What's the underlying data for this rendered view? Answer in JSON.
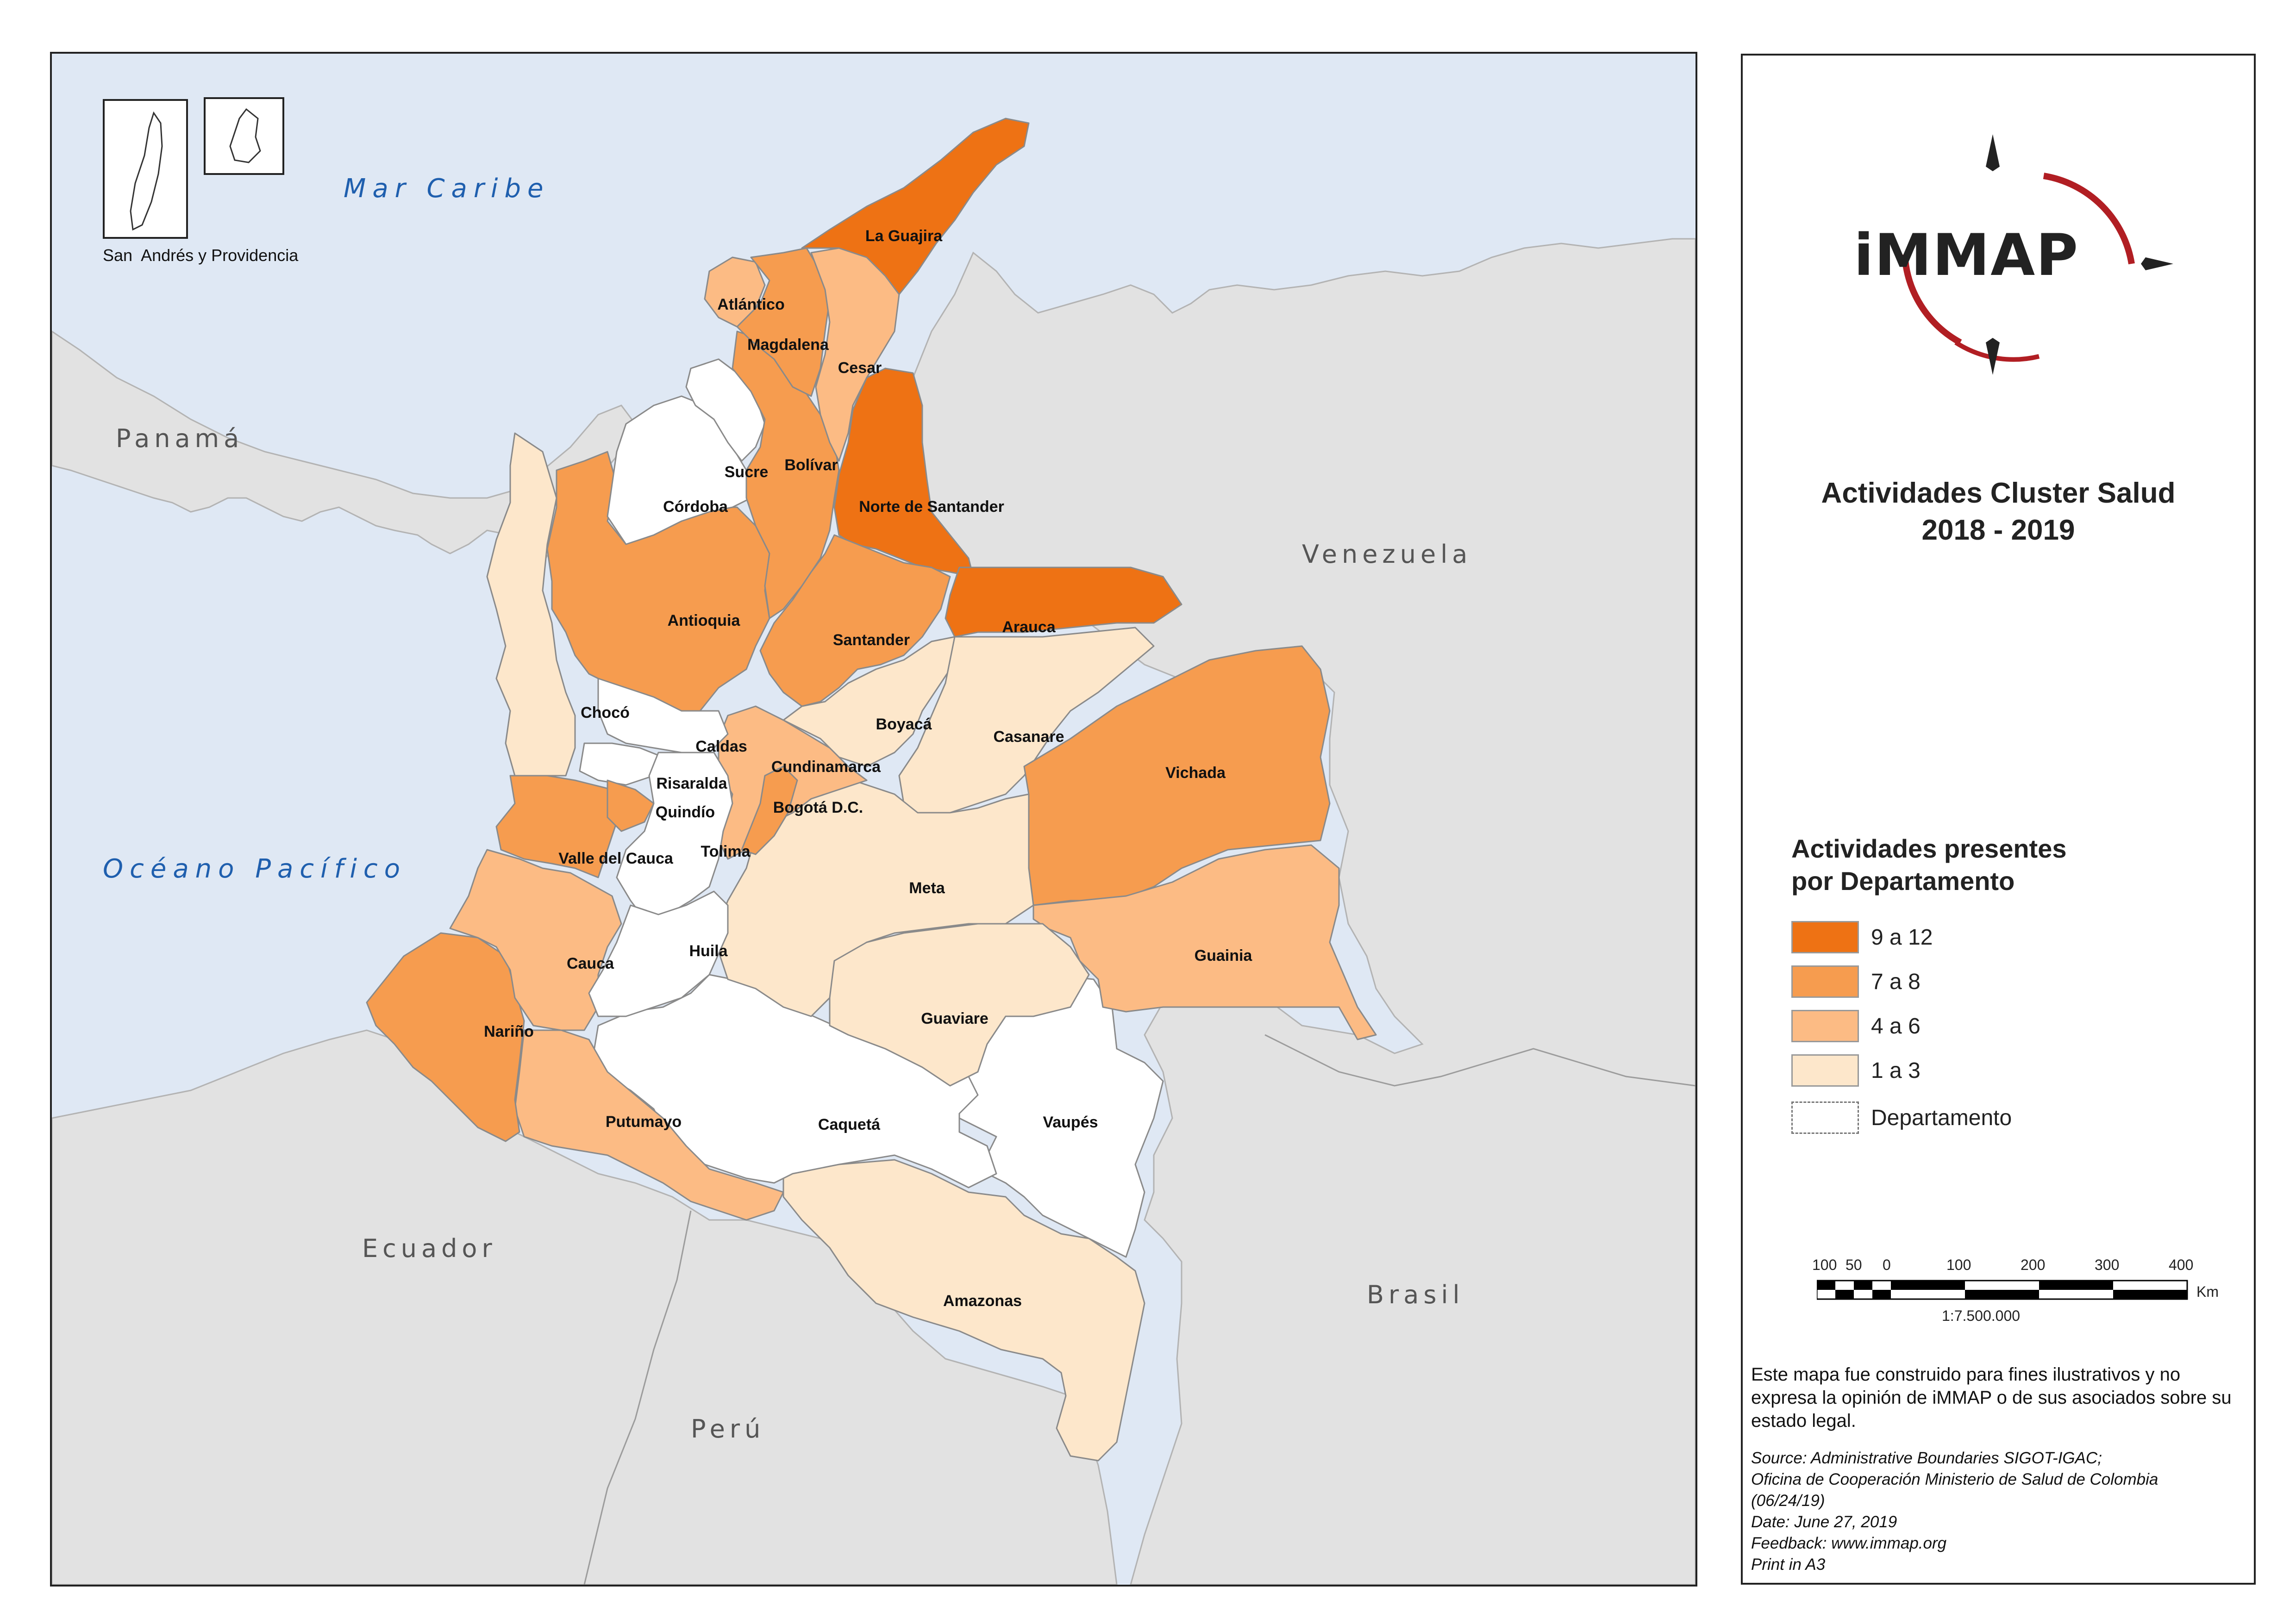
{
  "map": {
    "sea_labels": {
      "caribbean": "Mar Caribe",
      "pacific": "Océano Pacífico"
    },
    "country_labels": {
      "panama": "Panamá",
      "venezuela": "Venezuela",
      "ecuador": "Ecuador",
      "peru": "Perú",
      "brasil": "Brasil"
    },
    "inset_label": "San  Andrés y Providencia",
    "departments": [
      {
        "name": "La Guajira",
        "class": "9 a 12"
      },
      {
        "name": "Atlántico",
        "class": "4 a 6"
      },
      {
        "name": "Magdalena",
        "class": "7 a 8"
      },
      {
        "name": "Cesar",
        "class": "4 a 6"
      },
      {
        "name": "Sucre",
        "class": "Departamento"
      },
      {
        "name": "Bolívar",
        "class": "7 a 8"
      },
      {
        "name": "Córdoba",
        "class": "Departamento"
      },
      {
        "name": "Norte de Santander",
        "class": "9 a 12"
      },
      {
        "name": "Antioquia",
        "class": "7 a 8"
      },
      {
        "name": "Santander",
        "class": "7 a 8"
      },
      {
        "name": "Arauca",
        "class": "9 a 12"
      },
      {
        "name": "Chocó",
        "class": "1 a 3"
      },
      {
        "name": "Boyacá",
        "class": "1 a 3"
      },
      {
        "name": "Casanare",
        "class": "1 a 3"
      },
      {
        "name": "Caldas",
        "class": "Departamento"
      },
      {
        "name": "Cundinamarca",
        "class": "4 a 6"
      },
      {
        "name": "Vichada",
        "class": "7 a 8"
      },
      {
        "name": "Risaralda",
        "class": "Departamento"
      },
      {
        "name": "Quindío",
        "class": "7 a 8"
      },
      {
        "name": "Bogotá D.C.",
        "class": "7 a 8"
      },
      {
        "name": "Valle del Cauca",
        "class": "7 a 8"
      },
      {
        "name": "Tolima",
        "class": "Departamento"
      },
      {
        "name": "Meta",
        "class": "1 a 3"
      },
      {
        "name": "Huila",
        "class": "Departamento"
      },
      {
        "name": "Cauca",
        "class": "4 a 6"
      },
      {
        "name": "Guainia",
        "class": "4 a 6"
      },
      {
        "name": "Guaviare",
        "class": "1 a 3"
      },
      {
        "name": "Nariño",
        "class": "7 a 8"
      },
      {
        "name": "Putumayo",
        "class": "4 a 6"
      },
      {
        "name": "Caquetá",
        "class": "Departamento"
      },
      {
        "name": "Vaupés",
        "class": "Departamento"
      },
      {
        "name": "Amazonas",
        "class": "1 a 3"
      }
    ]
  },
  "logo": {
    "text": "iMMAP"
  },
  "title": {
    "line1": "Actividades Cluster Salud",
    "line2": "2018 - 2019"
  },
  "legend": {
    "title_line1": "Actividades presentes",
    "title_line2": "por Departamento",
    "items": [
      {
        "label": "9 a 12",
        "color": "#ee7214"
      },
      {
        "label": "7 a 8",
        "color": "#f69c4f"
      },
      {
        "label": "4 a 6",
        "color": "#fcbb84"
      },
      {
        "label": "1 a 3",
        "color": "#fde7cb"
      },
      {
        "label": "Departamento",
        "color": "#ffffff"
      }
    ]
  },
  "scale": {
    "ticks": [
      "100",
      "50",
      "0",
      "100",
      "200",
      "300",
      "400"
    ],
    "unit": "Km",
    "ratio": "1:7.500.000"
  },
  "disclaimer": "Este mapa fue construido para fines ilustrativos y no expresa la opinión de iMMAP o de sus asociados sobre su estado legal.",
  "source": [
    "Source: Administrative Boundaries SIGOT-IGAC;",
    "Oficina de Cooperación Ministerio de Salud de Colombia",
    "(06/24/19)",
    "Date: June 27, 2019",
    "Feedback: www.immap.org",
    "Print in A3"
  ]
}
